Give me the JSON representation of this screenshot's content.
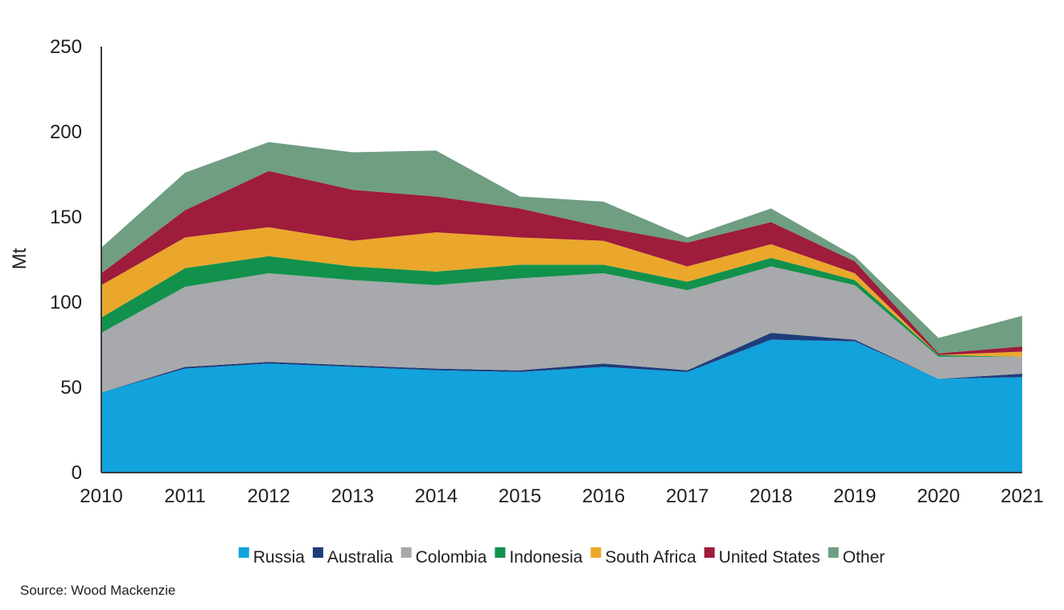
{
  "chart_data": {
    "type": "area",
    "stacked": true,
    "title": "",
    "xlabel": "",
    "ylabel": "Mt",
    "ylim": [
      0,
      250
    ],
    "yticks": [
      0,
      50,
      100,
      150,
      200,
      250
    ],
    "grid": false,
    "legend": "bottom",
    "x": [
      "2010",
      "2011",
      "2012",
      "2013",
      "2014",
      "2015",
      "2016",
      "2017",
      "2018",
      "2019",
      "2020",
      "2021"
    ],
    "series": [
      {
        "name": "Russia",
        "color": "#12a2dc",
        "values": [
          47,
          61,
          64,
          62,
          60,
          59,
          62,
          59,
          78,
          77,
          55,
          56
        ]
      },
      {
        "name": "Australia",
        "color": "#1f3d7a",
        "values": [
          0,
          1,
          1,
          1,
          1,
          1,
          2,
          1,
          4,
          1,
          0,
          2
        ]
      },
      {
        "name": "Colombia",
        "color": "#a7a9ac",
        "values": [
          35,
          47,
          52,
          50,
          49,
          54,
          53,
          47,
          39,
          32,
          13,
          10
        ]
      },
      {
        "name": "Indonesia",
        "color": "#12914c",
        "values": [
          9,
          11,
          10,
          8,
          8,
          8,
          5,
          5,
          5,
          3,
          1,
          0
        ]
      },
      {
        "name": "South Africa",
        "color": "#eaa72b",
        "values": [
          19,
          18,
          17,
          15,
          23,
          16,
          14,
          9,
          8,
          4,
          0,
          3
        ]
      },
      {
        "name": "United States",
        "color": "#9e1c3c",
        "values": [
          7,
          16,
          33,
          30,
          21,
          17,
          8,
          14,
          13,
          7,
          1,
          3
        ]
      },
      {
        "name": "Other",
        "color": "#6f9e82",
        "values": [
          15,
          22,
          17,
          22,
          27,
          7,
          15,
          3,
          8,
          3,
          9,
          18
        ]
      }
    ]
  },
  "source": "Source: Wood Mackenzie"
}
